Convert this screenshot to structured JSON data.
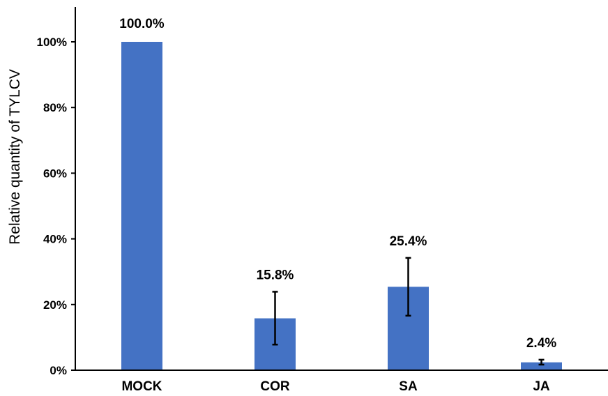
{
  "chart_data": {
    "type": "bar",
    "title": "",
    "xlabel": "",
    "ylabel": "Relative quantity of TYLCV",
    "categories": [
      "MOCK",
      "COR",
      "SA",
      "JA"
    ],
    "values": [
      100.0,
      15.8,
      25.4,
      2.4
    ],
    "data_labels": [
      "100.0%",
      "15.8%",
      "25.4%",
      "2.4%"
    ],
    "error_low": [
      100.0,
      7.8,
      16.6,
      1.7
    ],
    "error_high": [
      100.0,
      23.9,
      34.2,
      3.2
    ],
    "ylim": [
      0,
      100
    ],
    "yticks": [
      0,
      20,
      40,
      60,
      80,
      100
    ],
    "ytick_labels": [
      "0%",
      "20%",
      "40%",
      "60%",
      "80%",
      "100%"
    ],
    "bar_color": "#4472C4",
    "grid": false,
    "legend": "none"
  }
}
